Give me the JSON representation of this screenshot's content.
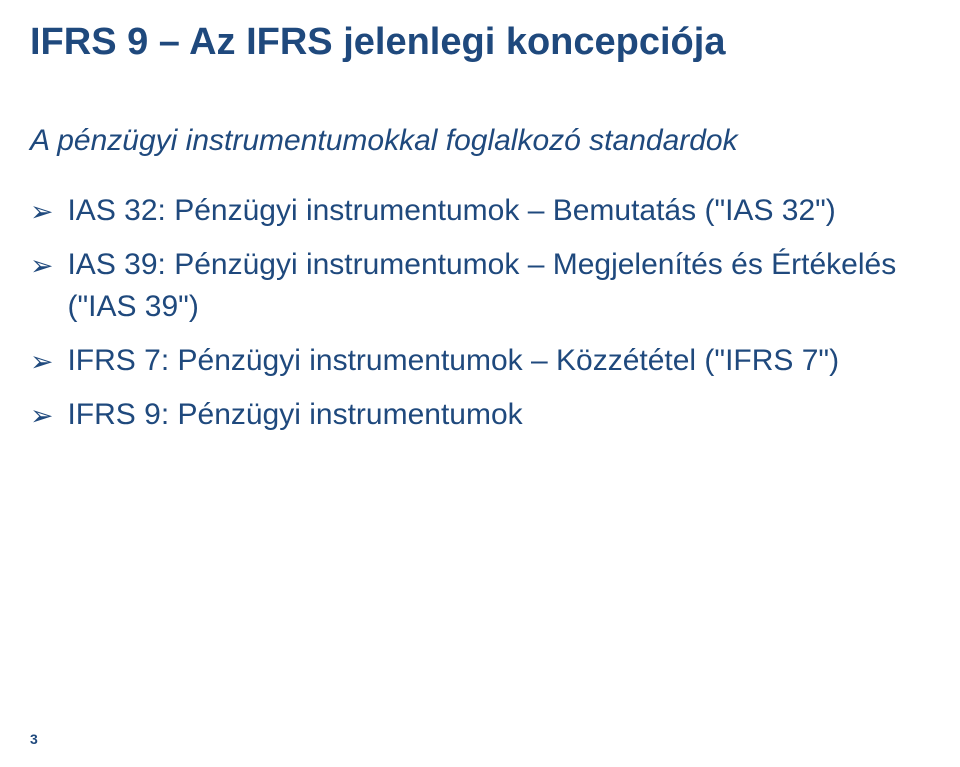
{
  "slide": {
    "title": "IFRS 9 – Az IFRS jelenlegi koncepciója",
    "subtitle": "A pénzügyi instrumentumokkal foglalkozó standardok",
    "bullets": [
      "IAS 32: Pénzügyi instrumentumok – Bemutatás (\"IAS 32\")",
      "IAS 39: Pénzügyi instrumentumok – Megjelenítés és Értékelés (\"IAS 39\")",
      "IFRS 7: Pénzügyi instrumentumok – Közzététel (\"IFRS 7\")",
      "IFRS 9: Pénzügyi instrumentumok"
    ],
    "page_number": "3"
  },
  "style": {
    "text_color": "#1f497d",
    "background_color": "#ffffff",
    "title_fontsize": 38,
    "subtitle_fontsize": 30,
    "body_fontsize": 30,
    "page_number_fontsize": 14,
    "bullet_marker": "➢"
  }
}
